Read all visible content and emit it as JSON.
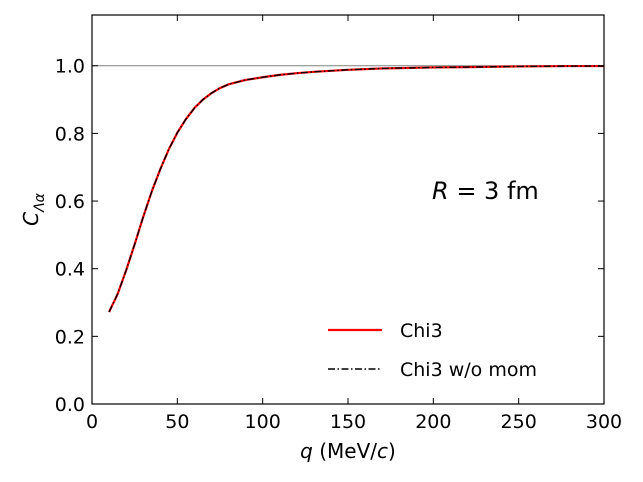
{
  "chart_data": {
    "type": "line",
    "title": "",
    "xlabel": {
      "symbol": "q",
      "text": " (MeV/",
      "unit_symbol": "c",
      "close": ")"
    },
    "ylabel": {
      "symbol": "C",
      "subscript": "Λα"
    },
    "xlim": [
      0,
      300
    ],
    "ylim": [
      0.0,
      1.15
    ],
    "x_ticks": [
      0,
      50,
      100,
      150,
      200,
      250,
      300
    ],
    "y_ticks": [
      0.0,
      0.2,
      0.4,
      0.6,
      0.8,
      1.0
    ],
    "x_tick_labels": [
      "0",
      "50",
      "100",
      "150",
      "200",
      "250",
      "300"
    ],
    "y_tick_labels": [
      "0.0",
      "0.2",
      "0.4",
      "0.6",
      "0.8",
      "1.0"
    ],
    "reference_line": {
      "y": 1.0,
      "color": "#808080"
    },
    "annotation": {
      "lhs": "R",
      "rhs": " = 3 fm"
    },
    "legend": {
      "position": "lower-right"
    },
    "series": [
      {
        "name": "Chi3",
        "style": "solid",
        "color": "#ff0000",
        "x": [
          10,
          15,
          20,
          25,
          30,
          35,
          40,
          45,
          50,
          55,
          60,
          65,
          70,
          75,
          80,
          90,
          100,
          110,
          120,
          130,
          140,
          150,
          160,
          170,
          180,
          200,
          220,
          250,
          280,
          300
        ],
        "y": [
          0.272,
          0.325,
          0.395,
          0.472,
          0.553,
          0.628,
          0.694,
          0.753,
          0.802,
          0.842,
          0.875,
          0.9,
          0.919,
          0.934,
          0.945,
          0.958,
          0.966,
          0.973,
          0.978,
          0.982,
          0.985,
          0.988,
          0.99,
          0.992,
          0.993,
          0.995,
          0.996,
          0.998,
          0.999,
          0.999
        ]
      },
      {
        "name": "Chi3 w/o mom",
        "style": "dashdot",
        "color": "#000000",
        "x": [
          10,
          15,
          20,
          25,
          30,
          35,
          40,
          45,
          50,
          55,
          60,
          65,
          70,
          75,
          80,
          90,
          100,
          110,
          120,
          130,
          140,
          150,
          160,
          170,
          180,
          200,
          220,
          250,
          280,
          300
        ],
        "y": [
          0.272,
          0.325,
          0.395,
          0.472,
          0.553,
          0.628,
          0.694,
          0.753,
          0.802,
          0.842,
          0.875,
          0.9,
          0.919,
          0.934,
          0.945,
          0.958,
          0.966,
          0.973,
          0.978,
          0.982,
          0.985,
          0.988,
          0.99,
          0.992,
          0.993,
          0.995,
          0.996,
          0.998,
          0.999,
          0.999
        ]
      }
    ]
  }
}
